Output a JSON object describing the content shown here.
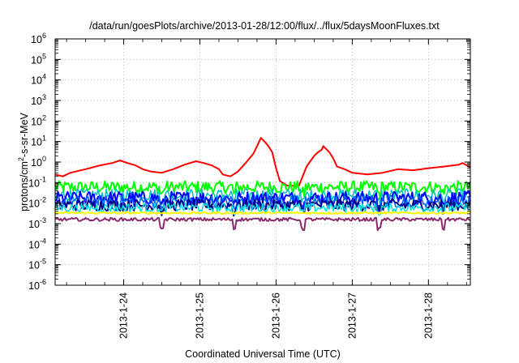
{
  "chart_data": {
    "type": "line",
    "title": "/data/run/goesPlots/archive/2013-01-28/12:00/flux/../flux/5daysMoonFluxes.txt",
    "xlabel": "Coordinated Universal Time (UTC)",
    "ylabel": {
      "pre": "protons/cm",
      "sup": "2",
      "post": "-s-sr-MeV"
    },
    "x_range_days": [
      23.1,
      28.55
    ],
    "x_ticks": [
      {
        "value": 24,
        "label": "2013-1-24"
      },
      {
        "value": 25,
        "label": "2013-1-25"
      },
      {
        "value": 26,
        "label": "2013-1-26"
      },
      {
        "value": 27,
        "label": "2013-1-27"
      },
      {
        "value": 28,
        "label": "2013-1-28"
      }
    ],
    "y_scale": "log",
    "y_exp_range": [
      -6,
      6
    ],
    "y_ticks": [
      {
        "exp": "6"
      },
      {
        "exp": "5"
      },
      {
        "exp": "4"
      },
      {
        "exp": "3"
      },
      {
        "exp": "2"
      },
      {
        "exp": "1"
      },
      {
        "exp": "0"
      },
      {
        "exp": "-1"
      },
      {
        "exp": "-2"
      },
      {
        "exp": "-3"
      },
      {
        "exp": "-4"
      },
      {
        "exp": "-5"
      },
      {
        "exp": "-6"
      }
    ],
    "y_tick_base": "10",
    "grid": true,
    "series": [
      {
        "color": "#ff0000",
        "width": 2,
        "points": [
          [
            23.1,
            0.25
          ],
          [
            23.2,
            0.2
          ],
          [
            23.3,
            0.3
          ],
          [
            23.5,
            0.45
          ],
          [
            23.7,
            0.7
          ],
          [
            23.85,
            0.9
          ],
          [
            23.95,
            1.2
          ],
          [
            24.05,
            0.9
          ],
          [
            24.15,
            0.7
          ],
          [
            24.25,
            0.45
          ],
          [
            24.35,
            0.35
          ],
          [
            24.5,
            0.3
          ],
          [
            24.65,
            0.45
          ],
          [
            24.8,
            0.75
          ],
          [
            24.95,
            1.1
          ],
          [
            25.05,
            0.9
          ],
          [
            25.15,
            0.7
          ],
          [
            25.25,
            0.45
          ],
          [
            25.3,
            0.25
          ],
          [
            25.4,
            0.2
          ],
          [
            25.5,
            0.35
          ],
          [
            25.6,
            0.9
          ],
          [
            25.7,
            2.5
          ],
          [
            25.75,
            6
          ],
          [
            25.8,
            15
          ],
          [
            25.85,
            10
          ],
          [
            25.9,
            6
          ],
          [
            25.95,
            3
          ],
          [
            26.0,
            0.5
          ],
          [
            26.05,
            0.12
          ],
          [
            26.15,
            0.07
          ],
          [
            26.3,
            0.07
          ],
          [
            26.4,
            0.6
          ],
          [
            26.5,
            2
          ],
          [
            26.55,
            3
          ],
          [
            26.6,
            4
          ],
          [
            26.62,
            6
          ],
          [
            26.7,
            3
          ],
          [
            26.75,
            1.5
          ],
          [
            26.8,
            0.6
          ],
          [
            26.9,
            0.45
          ],
          [
            27.0,
            0.3
          ],
          [
            27.2,
            0.25
          ],
          [
            27.4,
            0.3
          ],
          [
            27.6,
            0.45
          ],
          [
            27.8,
            0.4
          ],
          [
            28.0,
            0.5
          ],
          [
            28.2,
            0.6
          ],
          [
            28.4,
            0.75
          ],
          [
            28.45,
            0.9
          ],
          [
            28.5,
            0.7
          ],
          [
            28.55,
            0.55
          ]
        ]
      },
      {
        "color": "#00ff00",
        "width": 2,
        "level": 0.06,
        "amp": 0.3,
        "dips": [
          [
            24.5,
            0.3
          ],
          [
            25.45,
            0.3
          ],
          [
            26.35,
            0.3
          ],
          [
            27.35,
            0.3
          ],
          [
            28.2,
            0.3
          ]
        ]
      },
      {
        "color": "#00c0c0",
        "width": 1.5,
        "level": 0.025,
        "amp": 0.3,
        "dips": [
          [
            24.5,
            0.35
          ],
          [
            25.45,
            0.35
          ],
          [
            26.35,
            0.35
          ],
          [
            27.35,
            0.35
          ],
          [
            28.2,
            0.35
          ]
        ]
      },
      {
        "color": "#0000ff",
        "width": 2,
        "level": 0.018,
        "amp": 0.32,
        "dips": [
          [
            24.5,
            0.35
          ],
          [
            25.45,
            0.35
          ],
          [
            26.35,
            0.35
          ],
          [
            27.35,
            0.35
          ],
          [
            28.2,
            0.35
          ]
        ]
      },
      {
        "color": "#0060ff",
        "width": 1.5,
        "level": 0.012,
        "amp": 0.3,
        "dips": [
          [
            24.5,
            0.35
          ],
          [
            25.45,
            0.35
          ],
          [
            26.35,
            0.35
          ],
          [
            27.35,
            0.35
          ],
          [
            28.2,
            0.35
          ]
        ]
      },
      {
        "color": "#00008b",
        "width": 2,
        "level": 0.008,
        "amp": 0.28,
        "dips": [
          [
            24.5,
            0.3
          ],
          [
            25.45,
            0.3
          ],
          [
            26.35,
            0.3
          ],
          [
            27.35,
            0.3
          ],
          [
            28.2,
            0.3
          ]
        ]
      },
      {
        "color": "#00e0e0",
        "width": 1.5,
        "level": 0.006,
        "amp": 0.22,
        "dips": [
          [
            24.5,
            0.2
          ],
          [
            25.45,
            0.2
          ],
          [
            26.35,
            0.2
          ],
          [
            27.35,
            0.2
          ],
          [
            28.2,
            0.2
          ]
        ]
      },
      {
        "color": "#ffff00",
        "width": 2,
        "level": 0.0033,
        "amp": 0.05,
        "dips": []
      },
      {
        "color": "#8b2a6b",
        "width": 2,
        "level": 0.0016,
        "amp": 0.08,
        "dips": [
          [
            24.5,
            0.45
          ],
          [
            25.45,
            0.45
          ],
          [
            26.35,
            0.45
          ],
          [
            27.35,
            0.45
          ],
          [
            28.2,
            0.45
          ]
        ]
      }
    ]
  }
}
